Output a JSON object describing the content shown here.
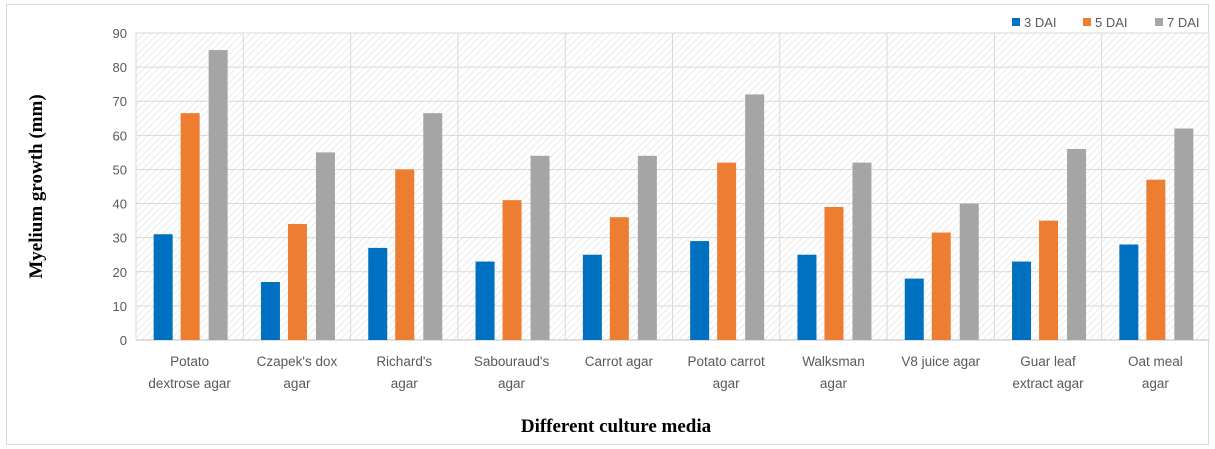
{
  "chart_data": {
    "type": "bar",
    "title": "",
    "xlabel": "Different culture media",
    "ylabel": "Myelium growth (mm)",
    "ylim": [
      0,
      90
    ],
    "yticks": [
      0,
      10,
      20,
      30,
      40,
      50,
      60,
      70,
      80,
      90
    ],
    "grid": true,
    "legend_position": "top-right",
    "categories": [
      [
        "Potato",
        "dextrose agar"
      ],
      [
        "Czapek's dox",
        "agar"
      ],
      [
        "Richard's",
        "agar"
      ],
      [
        "Sabouraud's",
        "agar"
      ],
      [
        "Carrot agar"
      ],
      [
        "Potato carrot",
        "agar"
      ],
      [
        "Walksman",
        "agar"
      ],
      [
        "V8 juice agar"
      ],
      [
        "Guar leaf",
        "extract agar"
      ],
      [
        "Oat meal",
        "agar"
      ]
    ],
    "series": [
      {
        "name": "3 DAI",
        "color": "#0070c0",
        "values": [
          31,
          17,
          27,
          23,
          25,
          29,
          25,
          18,
          23,
          28
        ]
      },
      {
        "name": "5 DAI",
        "color": "#ed7d31",
        "values": [
          66.5,
          34,
          50,
          41,
          36,
          52,
          39,
          31.5,
          35,
          47
        ]
      },
      {
        "name": "7 DAI",
        "color": "#a5a5a5",
        "values": [
          85,
          55,
          66.5,
          54,
          54,
          72,
          52,
          40,
          56,
          62
        ]
      }
    ]
  }
}
